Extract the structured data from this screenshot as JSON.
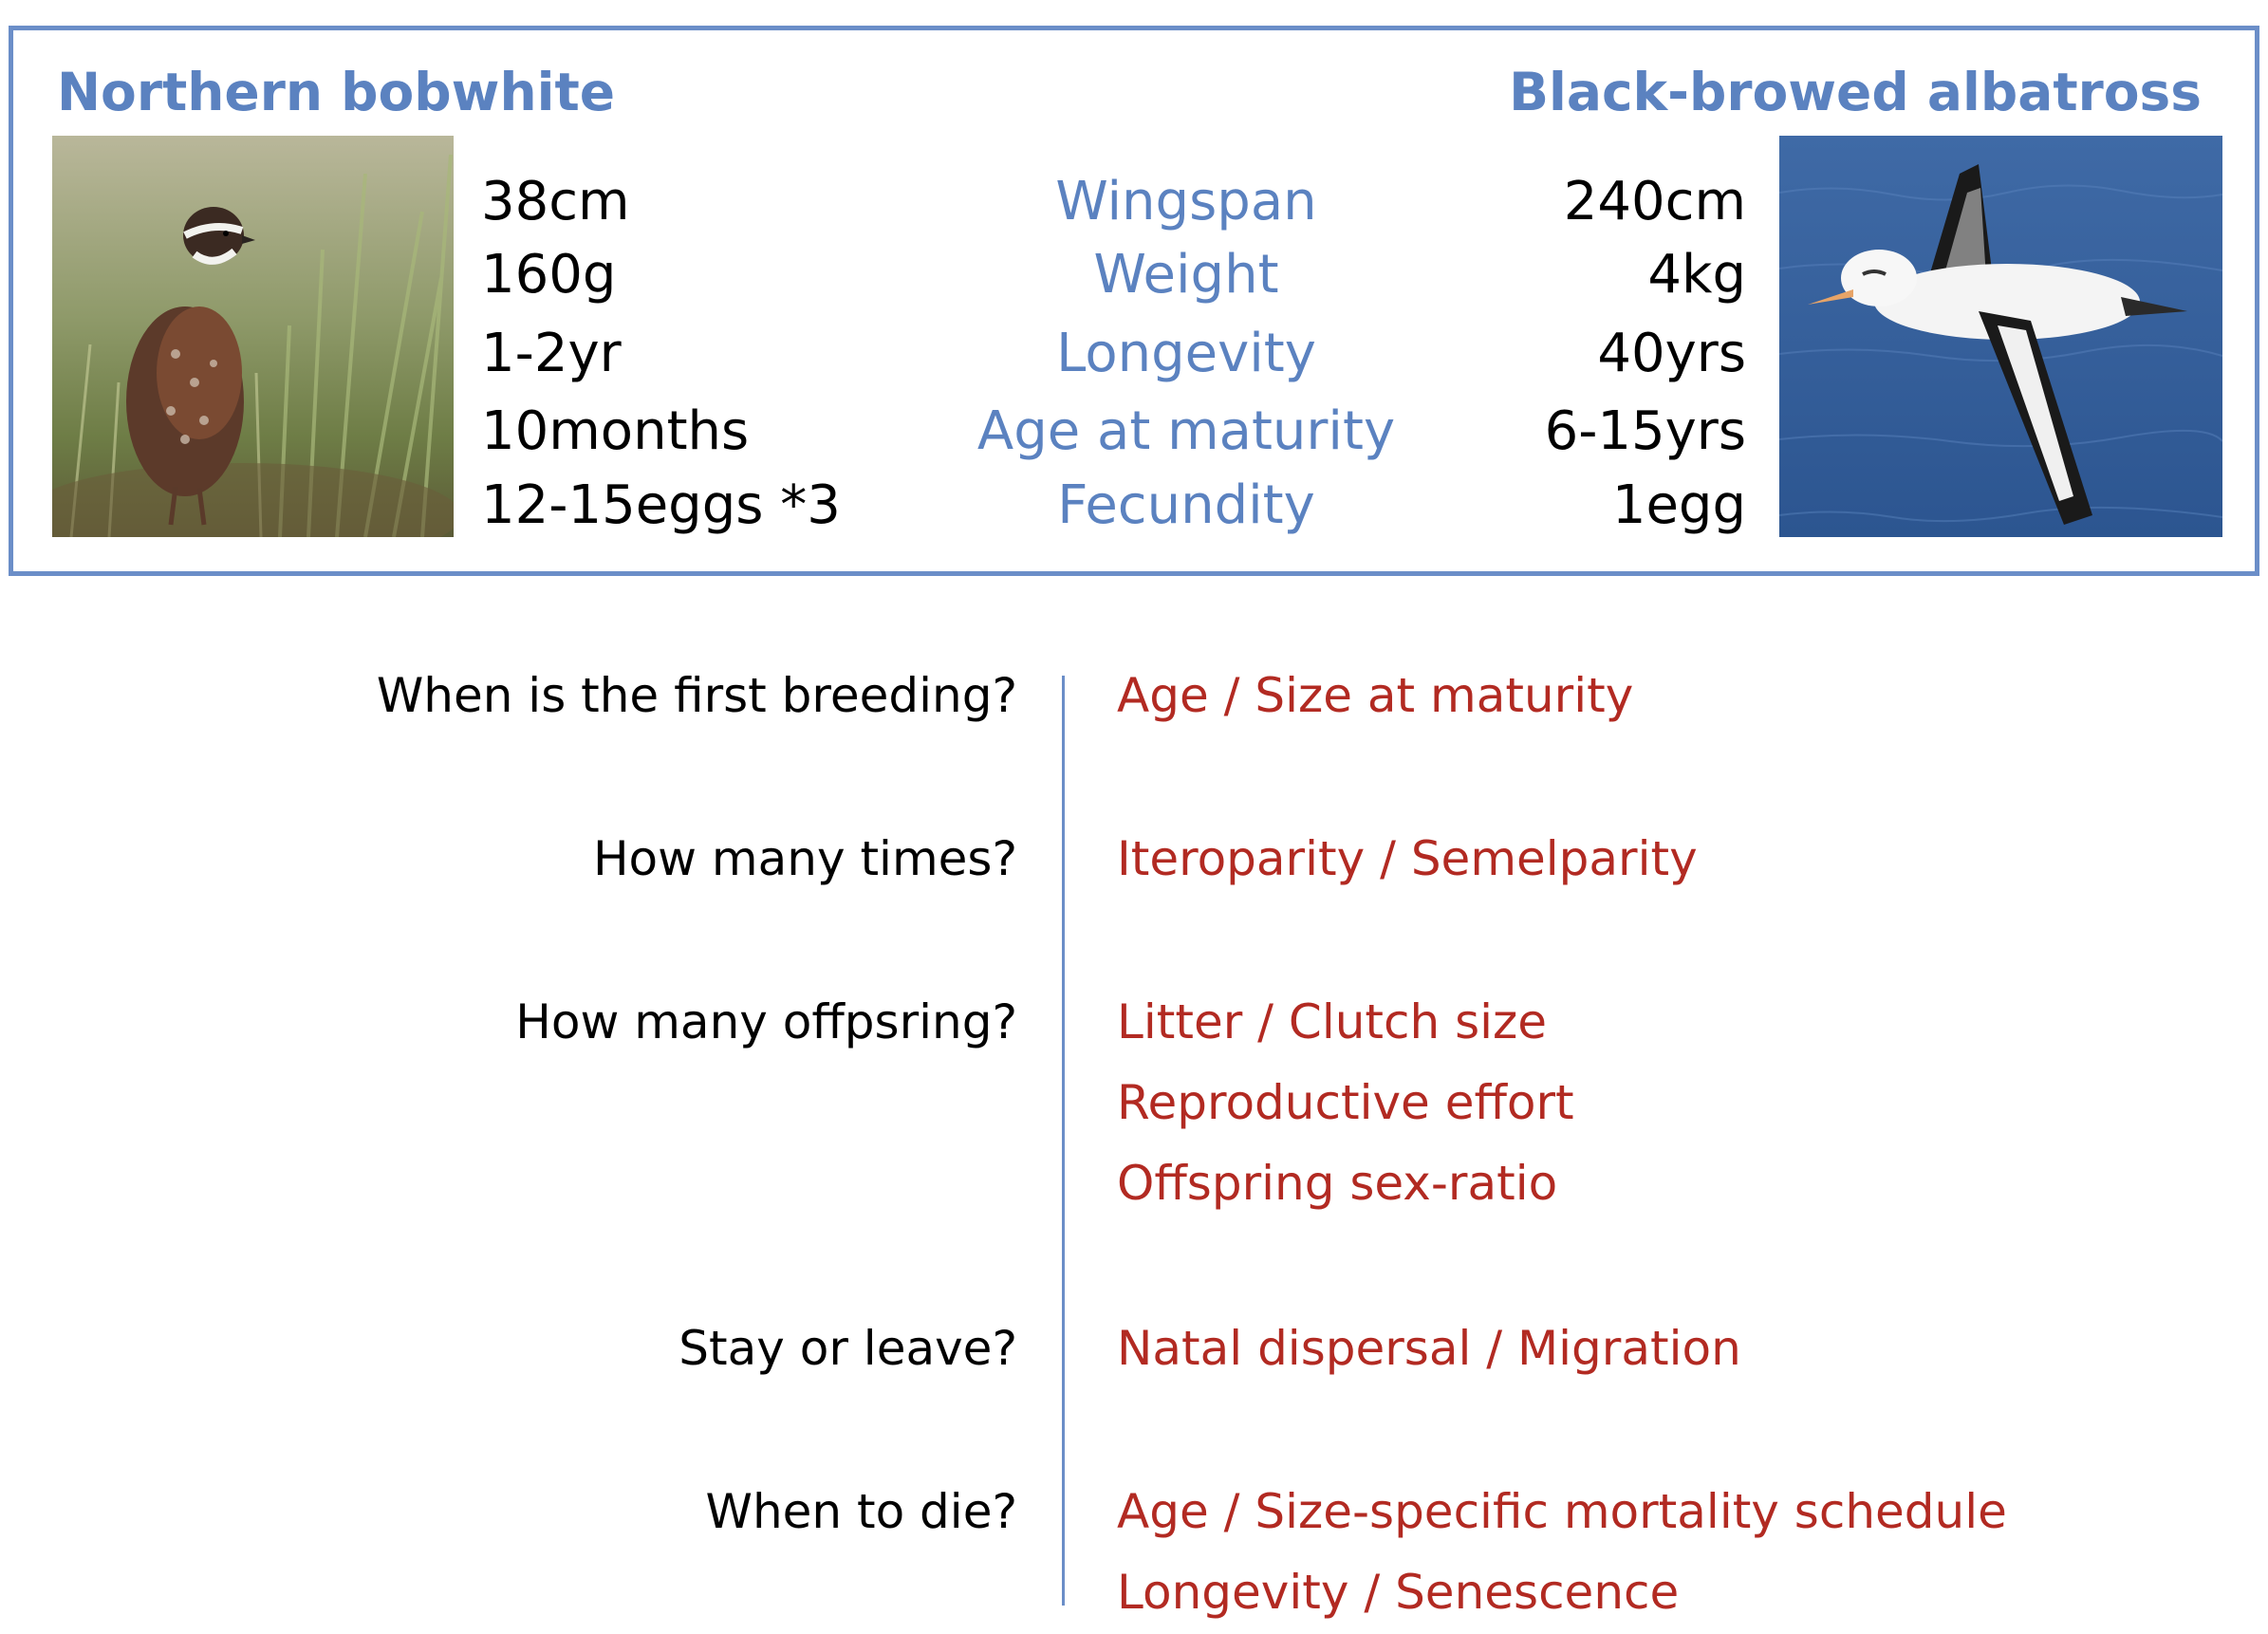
{
  "species_left": {
    "name": "Northern bobwhite",
    "stats": [
      "38cm",
      "160g",
      "1-2yr",
      "10months",
      "12-15eggs *3"
    ]
  },
  "species_right": {
    "name": "Black-browed albatross",
    "stats": [
      "240cm",
      "4kg",
      "40yrs",
      "6-15yrs",
      "1egg"
    ]
  },
  "traits": [
    "Wingspan",
    "Weight",
    "Longevity",
    "Age at maturity",
    "Fecundity"
  ],
  "questions": [
    {
      "question": "When is the first breeding?",
      "answers": [
        "Age / Size at maturity"
      ]
    },
    {
      "question": "How many times?",
      "answers": [
        "Iteroparity / Semelparity"
      ]
    },
    {
      "question": "How many offpsring?",
      "answers": [
        "Litter / Clutch size",
        "Reproductive effort",
        "Offspring sex-ratio"
      ]
    },
    {
      "question": "Stay or leave?",
      "answers": [
        "Natal dispersal / Migration"
      ]
    },
    {
      "question": "When to die?",
      "answers": [
        "Age / Size-specific mortality schedule",
        "Longevity / Senescence"
      ]
    }
  ],
  "colors": {
    "accent_blue": "#5b82c0",
    "answer_red": "#b22a22",
    "frame_blue": "#6b8ec8"
  }
}
